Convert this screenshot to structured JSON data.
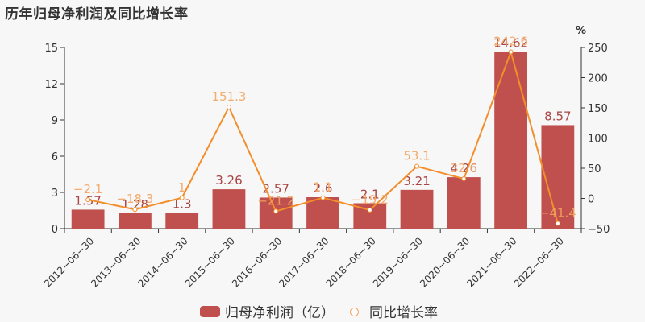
{
  "title": "历年归母净利润及同比增长率",
  "legend": {
    "bar_label": "归母净利润（亿）",
    "line_label": "同比增长率"
  },
  "colors": {
    "bar": "#c0504d",
    "bar_label": "#a94442",
    "line": "#f28e2b",
    "line_label": "#f4a460",
    "axis": "#333333"
  },
  "chart_data": {
    "type": "bar+line",
    "title": "历年归母净利润及同比增长率",
    "categories": [
      "2012-06-30",
      "2013-06-30",
      "2014-06-30",
      "2015-06-30",
      "2016-06-30",
      "2017-06-30",
      "2018-06-30",
      "2019-06-30",
      "2020-06-30",
      "2021-06-30",
      "2022-06-30"
    ],
    "series": [
      {
        "name": "归母净利润（亿）",
        "type": "bar",
        "axis": "left",
        "values": [
          1.57,
          1.28,
          1.3,
          3.26,
          2.57,
          2.6,
          2.1,
          3.21,
          4.26,
          14.62,
          8.57
        ]
      },
      {
        "name": "同比增长率",
        "type": "line",
        "axis": "right",
        "values": [
          -2.1,
          -18.3,
          1,
          151.3,
          -21.2,
          1.1,
          -19.2,
          53.1,
          32.6,
          242.6,
          -41.4
        ]
      }
    ],
    "left_axis": {
      "ylim": [
        0,
        15
      ],
      "ticks": [
        0,
        3,
        6,
        9,
        12,
        15
      ]
    },
    "right_axis": {
      "label": "%",
      "ylim": [
        -50,
        250
      ],
      "ticks": [
        -50,
        0,
        50,
        100,
        150,
        200,
        250
      ]
    },
    "grid": false,
    "legend_position": "bottom"
  }
}
